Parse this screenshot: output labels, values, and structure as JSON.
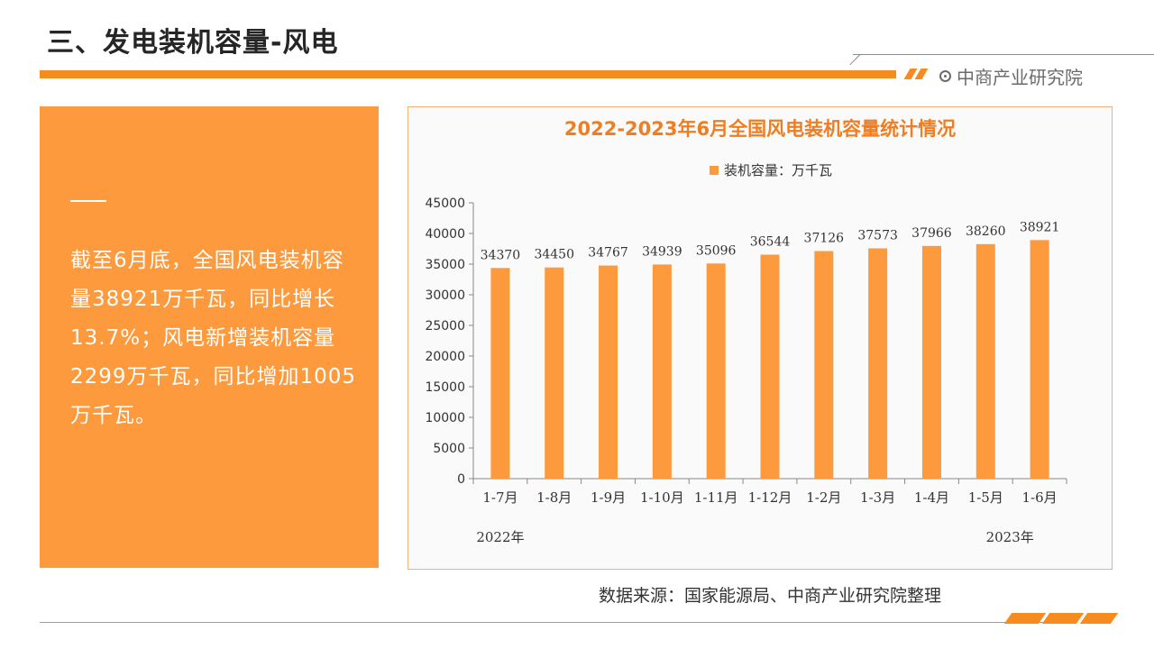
{
  "page": {
    "title": "三、发电装机容量-风电",
    "brand": "中商产业研究院",
    "brand_icon": "circle-dot-icon",
    "accent_color": "#f68b1f",
    "summary_text": "截至6月底，全国风电装机容量38921万千瓦，同比增长13.7%；风电新增装机容量2299万千瓦，同比增加1005万千瓦。",
    "source": "数据来源：国家能源局、中商产业研究院整理"
  },
  "chart_data": {
    "type": "bar",
    "title": "2022-2023年6月全国风电装机容量统计情况",
    "categories": [
      "1-7月",
      "1-8月",
      "1-9月",
      "1-10月",
      "1-11月",
      "1-12月",
      "1-2月",
      "1-3月",
      "1-4月",
      "1-5月",
      "1-6月"
    ],
    "series": [
      {
        "name": "装机容量：万千瓦",
        "color": "#fd9a3d",
        "values": [
          34370,
          34450,
          34767,
          34939,
          35096,
          36544,
          37126,
          37573,
          37966,
          38260,
          38921
        ]
      }
    ],
    "year_labels": [
      "2022年",
      "2023年"
    ],
    "ylim": [
      0,
      45000
    ],
    "yticks": [
      0,
      5000,
      10000,
      15000,
      20000,
      25000,
      30000,
      35000,
      40000,
      45000
    ],
    "legend": "top-center",
    "grid": false
  }
}
